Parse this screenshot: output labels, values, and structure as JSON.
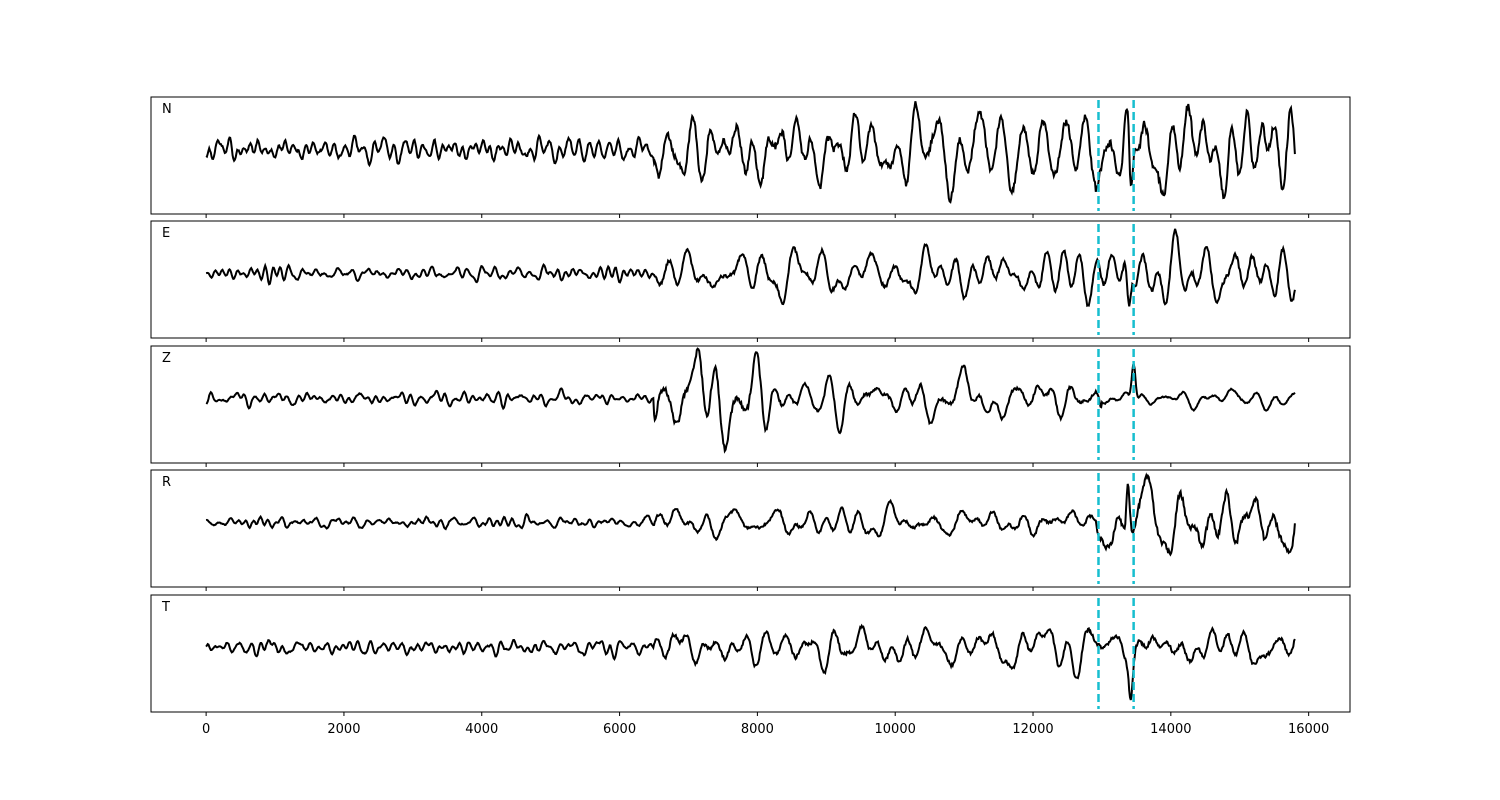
{
  "chart_data": {
    "type": "line",
    "title": "",
    "xlabel": "",
    "ylabel": "",
    "xlim": [
      -800,
      16600
    ],
    "x_ticks": [
      0,
      2000,
      4000,
      6000,
      8000,
      10000,
      12000,
      14000,
      16000
    ],
    "x_tick_labels": [
      "0",
      "2000",
      "4000",
      "6000",
      "8000",
      "10000",
      "12000",
      "14000",
      "16000"
    ],
    "x_range_data": [
      0,
      15800
    ],
    "markers": [
      {
        "x": 12950,
        "color": "#17becf",
        "style": "dashed"
      },
      {
        "x": 13460,
        "color": "#17becf",
        "style": "dashed"
      }
    ],
    "line_color": "#000000",
    "panels": [
      {
        "label": "N",
        "peak_amplitude_relative": 1.0
      },
      {
        "label": "E",
        "peak_amplitude_relative": 0.85
      },
      {
        "label": "Z",
        "peak_amplitude_relative": 1.0
      },
      {
        "label": "R",
        "peak_amplitude_relative": 0.9
      },
      {
        "label": "T",
        "peak_amplitude_relative": 1.0
      }
    ]
  }
}
